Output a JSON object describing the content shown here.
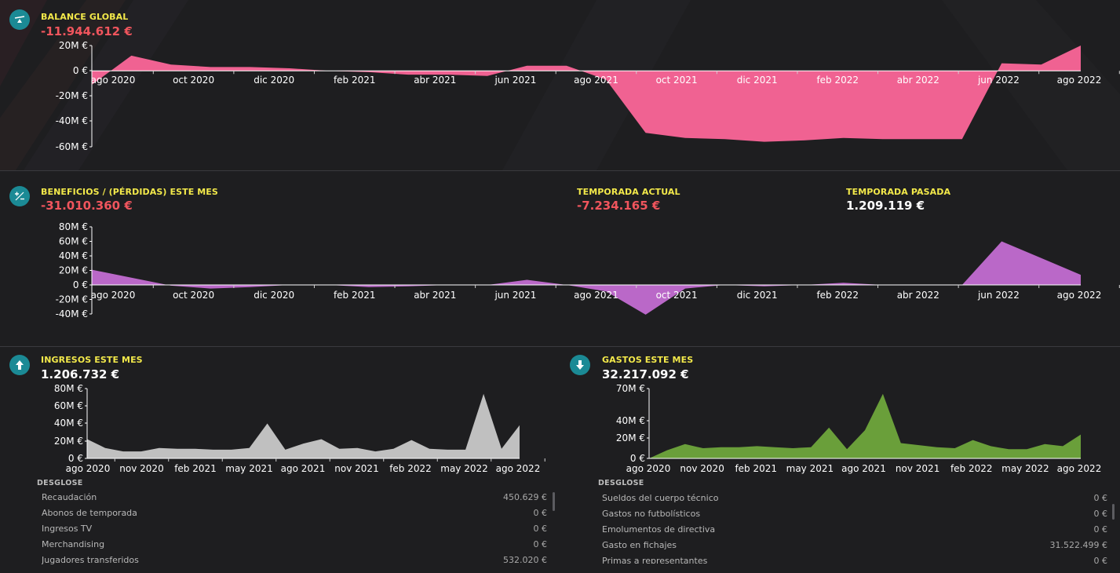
{
  "balance": {
    "title": "BALANCE GLOBAL",
    "value": "-11.944.612 €",
    "icon": "scale-icon"
  },
  "profit": {
    "title": "BENEFICIOS / (PÉRDIDAS) ESTE MES",
    "value": "-31.010.360 €",
    "icon": "plus-minus-icon",
    "current_season_title": "TEMPORADA ACTUAL",
    "current_season_value": "-7.234.165 €",
    "last_season_title": "TEMPORADA PASADA",
    "last_season_value": "1.209.119 €"
  },
  "income": {
    "title": "INGRESOS ESTE MES",
    "value": "1.206.732 €",
    "icon": "arrow-up-icon",
    "breakdown_title": "DESGLOSE",
    "breakdown": [
      {
        "label": "Recaudación",
        "value": "450.629 €"
      },
      {
        "label": "Abonos de temporada",
        "value": "0 €"
      },
      {
        "label": "Ingresos TV",
        "value": "0 €"
      },
      {
        "label": "Merchandising",
        "value": "0 €"
      },
      {
        "label": "Jugadores transferidos",
        "value": "532.020 €"
      }
    ]
  },
  "expenses": {
    "title": "GASTOS ESTE MES",
    "value": "32.217.092 €",
    "icon": "arrow-down-icon",
    "breakdown_title": "DESGLOSE",
    "breakdown": [
      {
        "label": "Sueldos del cuerpo técnico",
        "value": "0 €"
      },
      {
        "label": "Gastos no futbolísticos",
        "value": "0 €"
      },
      {
        "label": "Emolumentos de directiva",
        "value": "0 €"
      },
      {
        "label": "Gasto en fichajes",
        "value": "31.522.499 €"
      },
      {
        "label": "Primas a representantes",
        "value": "0 €"
      }
    ]
  },
  "colors": {
    "balance_fill": "#f06292",
    "profit_fill": "#ba68c8",
    "income_fill": "#c0c0c0",
    "expenses_fill": "#6a9f3a",
    "title": "#f3e94a",
    "negative": "#f0555d",
    "icon_bg": "#1b8a95"
  },
  "chart_data": [
    {
      "id": "balance",
      "type": "area",
      "x": [
        "jul 2020",
        "ago 2020",
        "sep 2020",
        "oct 2020",
        "nov 2020",
        "dic 2020",
        "ene 2021",
        "feb 2021",
        "mar 2021",
        "abr 2021",
        "may 2021",
        "jun 2021",
        "jul 2021",
        "ago 2021",
        "sep 2021",
        "oct 2021",
        "nov 2021",
        "dic 2021",
        "ene 2022",
        "feb 2022",
        "mar 2022",
        "abr 2022",
        "may 2022",
        "jun 2022",
        "jul 2022",
        "ago 2022"
      ],
      "values": [
        -11,
        12,
        5,
        3,
        3,
        2,
        0,
        -1,
        -3,
        -3,
        -4,
        4,
        4,
        -7,
        -49,
        -53,
        -54,
        -56,
        -55,
        -53,
        -54,
        -54,
        -54,
        6,
        5,
        20
      ],
      "xticks": [
        "ago 2020",
        "oct 2020",
        "dic 2020",
        "feb 2021",
        "abr 2021",
        "jun 2021",
        "ago 2021",
        "oct 2021",
        "dic 2021",
        "feb 2022",
        "abr 2022",
        "jun 2022",
        "ago 2022"
      ],
      "yticks": [
        "20M €",
        "0 €",
        "-20M €",
        "-40M €",
        "-60M €"
      ],
      "ylim": [
        -60,
        20
      ]
    },
    {
      "id": "profit",
      "type": "area",
      "x": [
        "jul 2020",
        "ago 2020",
        "sep 2020",
        "oct 2020",
        "nov 2020",
        "dic 2020",
        "ene 2021",
        "feb 2021",
        "mar 2021",
        "abr 2021",
        "may 2021",
        "jun 2021",
        "jul 2021",
        "ago 2021",
        "sep 2021",
        "oct 2021",
        "nov 2021",
        "dic 2021",
        "ene 2022",
        "feb 2022",
        "mar 2022",
        "abr 2022",
        "may 2022",
        "jun 2022",
        "jul 2022",
        "ago 2022"
      ],
      "values": [
        21,
        10,
        -1,
        -5,
        -3,
        0,
        0,
        -3,
        -2,
        0,
        0,
        7,
        0,
        -9,
        -41,
        -5,
        0,
        -2,
        0,
        3,
        0,
        0,
        0,
        60,
        37,
        14
      ],
      "xticks": [
        "ago 2020",
        "oct 2020",
        "dic 2020",
        "feb 2021",
        "abr 2021",
        "jun 2021",
        "ago 2021",
        "oct 2021",
        "dic 2021",
        "feb 2022",
        "abr 2022",
        "jun 2022",
        "ago 2022"
      ],
      "yticks": [
        "80M €",
        "60M €",
        "40M €",
        "20M €",
        "0 €",
        "-20M €",
        "-40M €"
      ],
      "ylim": [
        -40,
        80
      ]
    },
    {
      "id": "income",
      "type": "area",
      "x": [
        "ago 2020",
        "sep 2020",
        "oct 2020",
        "nov 2020",
        "dic 2020",
        "ene 2021",
        "feb 2021",
        "mar 2021",
        "abr 2021",
        "may 2021",
        "jun 2021",
        "jul 2021",
        "ago 2021",
        "sep 2021",
        "oct 2021",
        "nov 2021",
        "dic 2021",
        "ene 2022",
        "feb 2022",
        "mar 2022",
        "abr 2022",
        "may 2022",
        "jun 2022",
        "jul 2022",
        "ago 2022"
      ],
      "values": [
        22,
        12,
        8,
        8,
        12,
        11,
        11,
        10,
        10,
        12,
        40,
        10,
        17,
        22,
        11,
        12,
        8,
        11,
        21,
        11,
        10,
        10,
        74,
        11,
        38
      ],
      "xticks": [
        "ago 2020",
        "nov 2020",
        "feb 2021",
        "may 2021",
        "ago 2021",
        "nov 2021",
        "feb 2022",
        "may 2022",
        "ago 2022"
      ],
      "yticks": [
        "80M €",
        "60M €",
        "40M €",
        "20M €",
        "0 €"
      ],
      "ylim": [
        0,
        80
      ]
    },
    {
      "id": "expenses",
      "type": "area",
      "x": [
        "ago 2020",
        "sep 2020",
        "oct 2020",
        "nov 2020",
        "dic 2020",
        "ene 2021",
        "feb 2021",
        "mar 2021",
        "abr 2021",
        "may 2021",
        "jun 2021",
        "jul 2021",
        "ago 2021",
        "sep 2021",
        "oct 2021",
        "nov 2021",
        "dic 2021",
        "ene 2022",
        "feb 2022",
        "mar 2022",
        "abr 2022",
        "may 2022",
        "jun 2022",
        "jul 2022",
        "ago 2022"
      ],
      "values": [
        0,
        8,
        14,
        10,
        11,
        11,
        12,
        11,
        10,
        11,
        32,
        9,
        29,
        65,
        15,
        13,
        11,
        10,
        18,
        12,
        9,
        9,
        14,
        12,
        24
      ],
      "xticks": [
        "ago 2020",
        "nov 2020",
        "feb 2021",
        "may 2021",
        "ago 2021",
        "nov 2021",
        "feb 2022",
        "may 2022",
        "ago 2022"
      ],
      "yticks": [
        "70M €",
        "40M €",
        "20M €",
        "0 €"
      ],
      "ylim": [
        0,
        70
      ]
    }
  ]
}
